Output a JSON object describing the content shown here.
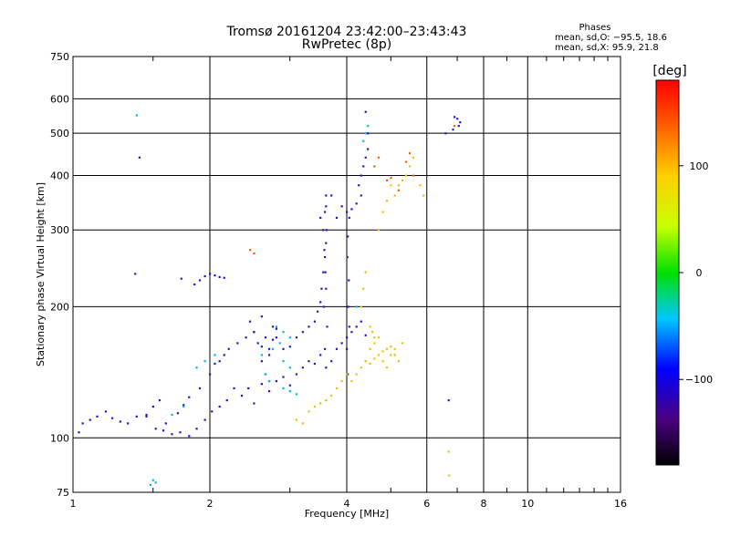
{
  "chart_data": {
    "type": "scatter",
    "title": "Tromsø 20161204 23:42:00–23:43:43",
    "subtitle": "RwPretec (8p)",
    "xlabel": "Frequency [MHz]",
    "ylabel": "Stationary phase Virtual Height [km]",
    "x_scale": "log",
    "y_scale": "log",
    "xlim": [
      1,
      16
    ],
    "ylim": [
      75,
      750
    ],
    "x_ticks": [
      1,
      2,
      4,
      6,
      8,
      10,
      16
    ],
    "y_ticks": [
      75,
      100,
      200,
      300,
      400,
      500,
      600,
      750
    ],
    "x_tick_labels": [
      "1",
      "2",
      "4",
      "6",
      "8",
      "10",
      "16"
    ],
    "y_tick_labels": [
      "75",
      "100",
      "200",
      "300",
      "400",
      "500",
      "600",
      "750"
    ],
    "grid": true,
    "stats": {
      "heading": "Phases",
      "line_o": "mean, sd,O: −95.5, 18.6",
      "line_x": "mean, sd,X:  95.9, 21.8"
    },
    "colorbar": {
      "label": "[deg]",
      "range": [
        -180,
        180
      ],
      "ticks": [
        100,
        0,
        -100
      ],
      "tick_labels": [
        "100",
        "0",
        "−100"
      ]
    },
    "series": [
      {
        "x": [
          1.03,
          1.05,
          1.09,
          1.13,
          1.18,
          1.22,
          1.27,
          1.32,
          1.38,
          1.45,
          1.52,
          1.58,
          1.65,
          1.72,
          1.8,
          1.87,
          1.95,
          2.02,
          2.1,
          2.18,
          2.26,
          2.35,
          2.43,
          2.5,
          2.6,
          2.7,
          2.8,
          2.9,
          3.0,
          3.1,
          3.2,
          3.3,
          3.4,
          3.5,
          3.6,
          3.7,
          3.8,
          3.9,
          4.0,
          4.1,
          4.2,
          4.3,
          4.4,
          1.45,
          1.5,
          1.55,
          1.6,
          1.7,
          1.75,
          1.8,
          1.9,
          2.0,
          2.05,
          2.1,
          2.15,
          2.2,
          2.3,
          2.4,
          2.5,
          2.6,
          2.7,
          2.75,
          2.8,
          2.9,
          3.0,
          3.1,
          3.2,
          3.3,
          3.4,
          3.45,
          3.5,
          3.52,
          3.55,
          3.58,
          3.6,
          3.55,
          3.5,
          3.6,
          3.7,
          3.8,
          3.9,
          4.0,
          4.1,
          4.2,
          4.3,
          4.25,
          4.3,
          4.35,
          4.4,
          4.45,
          4.45,
          4.4,
          3.58,
          3.62,
          3.56,
          3.6,
          3.59,
          3.57,
          3.61,
          3.58,
          3.6,
          4.02,
          4.0,
          4.05,
          4.03,
          4.04,
          4.01,
          4.02,
          4.05,
          1.85,
          1.9,
          1.95,
          2.0,
          2.05,
          2.1,
          2.15,
          1.4,
          1.37,
          1.73,
          6.9,
          7.0,
          7.1,
          7.05,
          6.85,
          6.6,
          6.7,
          2.45,
          2.5,
          2.55,
          2.6,
          2.65,
          2.7,
          2.75,
          2.8,
          2.6,
          2.65,
          2.7
        ],
        "y": [
          103,
          108,
          110,
          112,
          115,
          111,
          109,
          108,
          112,
          113,
          105,
          104,
          102,
          103,
          101,
          105,
          110,
          115,
          118,
          122,
          130,
          125,
          130,
          120,
          133,
          128,
          135,
          138,
          132,
          140,
          145,
          150,
          148,
          155,
          145,
          150,
          160,
          165,
          170,
          175,
          180,
          185,
          172,
          112,
          118,
          122,
          108,
          114,
          119,
          124,
          130,
          140,
          148,
          150,
          155,
          160,
          165,
          170,
          175,
          162,
          155,
          168,
          178,
          160,
          162,
          170,
          175,
          180,
          185,
          195,
          205,
          220,
          240,
          260,
          280,
          300,
          320,
          340,
          360,
          320,
          340,
          330,
          335,
          345,
          360,
          380,
          400,
          420,
          440,
          460,
          500,
          560,
          160,
          180,
          200,
          220,
          240,
          270,
          300,
          330,
          360,
          140,
          160,
          180,
          200,
          230,
          260,
          290,
          320,
          225,
          230,
          235,
          238,
          236,
          234,
          233,
          440,
          238,
          232,
          545,
          540,
          530,
          520,
          510,
          500,
          122,
          185,
          175,
          165,
          190,
          170,
          160,
          180,
          170,
          150,
          140,
          135
        ]
      },
      {
        "x": [
          4.1,
          4.2,
          4.3,
          4.4,
          4.5,
          4.6,
          4.7,
          4.8,
          4.9,
          5.0,
          5.1,
          5.2,
          5.3,
          3.8,
          3.9,
          4.0,
          3.7,
          3.6,
          3.5,
          3.4,
          3.3,
          4.3,
          4.35,
          4.4,
          4.5,
          4.55,
          4.6,
          4.7,
          4.8,
          4.9,
          5.0,
          5.1,
          5.2,
          5.3,
          5.4,
          5.5,
          5.6,
          5.8,
          5.9,
          4.4,
          4.5,
          4.6,
          4.7,
          4.8,
          4.9,
          5.0,
          5.1,
          6.7,
          6.72,
          3.1,
          3.2
        ],
        "y": [
          135,
          140,
          145,
          150,
          148,
          152,
          155,
          158,
          160,
          162,
          155,
          150,
          165,
          130,
          135,
          140,
          125,
          122,
          120,
          118,
          115,
          200,
          220,
          240,
          180,
          175,
          170,
          300,
          330,
          350,
          380,
          360,
          380,
          390,
          400,
          420,
          440,
          380,
          360,
          150,
          160,
          165,
          170,
          150,
          145,
          155,
          160,
          93,
          82,
          110,
          108
        ]
      },
      {
        "x": [
          1.75,
          1.65,
          2.8,
          2.9,
          3.0,
          2.85,
          2.75,
          2.6,
          2.9,
          3.0,
          2.65,
          2.7,
          2.9,
          3.0,
          3.1,
          1.5,
          1.52,
          1.48,
          4.35,
          4.4,
          4.45,
          4.2,
          1.87,
          1.95,
          2.05,
          1.38
        ],
        "y": [
          118,
          113,
          180,
          175,
          170,
          165,
          160,
          155,
          150,
          145,
          140,
          135,
          130,
          128,
          126,
          80,
          79,
          78,
          480,
          500,
          520,
          200,
          145,
          150,
          155,
          550
        ]
      },
      {
        "x": [
          5.4,
          5.5,
          5.6,
          4.9,
          5.0,
          5.2,
          4.6,
          4.7,
          6.9,
          2.45,
          2.5
        ],
        "y": [
          430,
          450,
          400,
          390,
          395,
          370,
          420,
          440,
          520,
          270,
          265
        ]
      }
    ]
  }
}
